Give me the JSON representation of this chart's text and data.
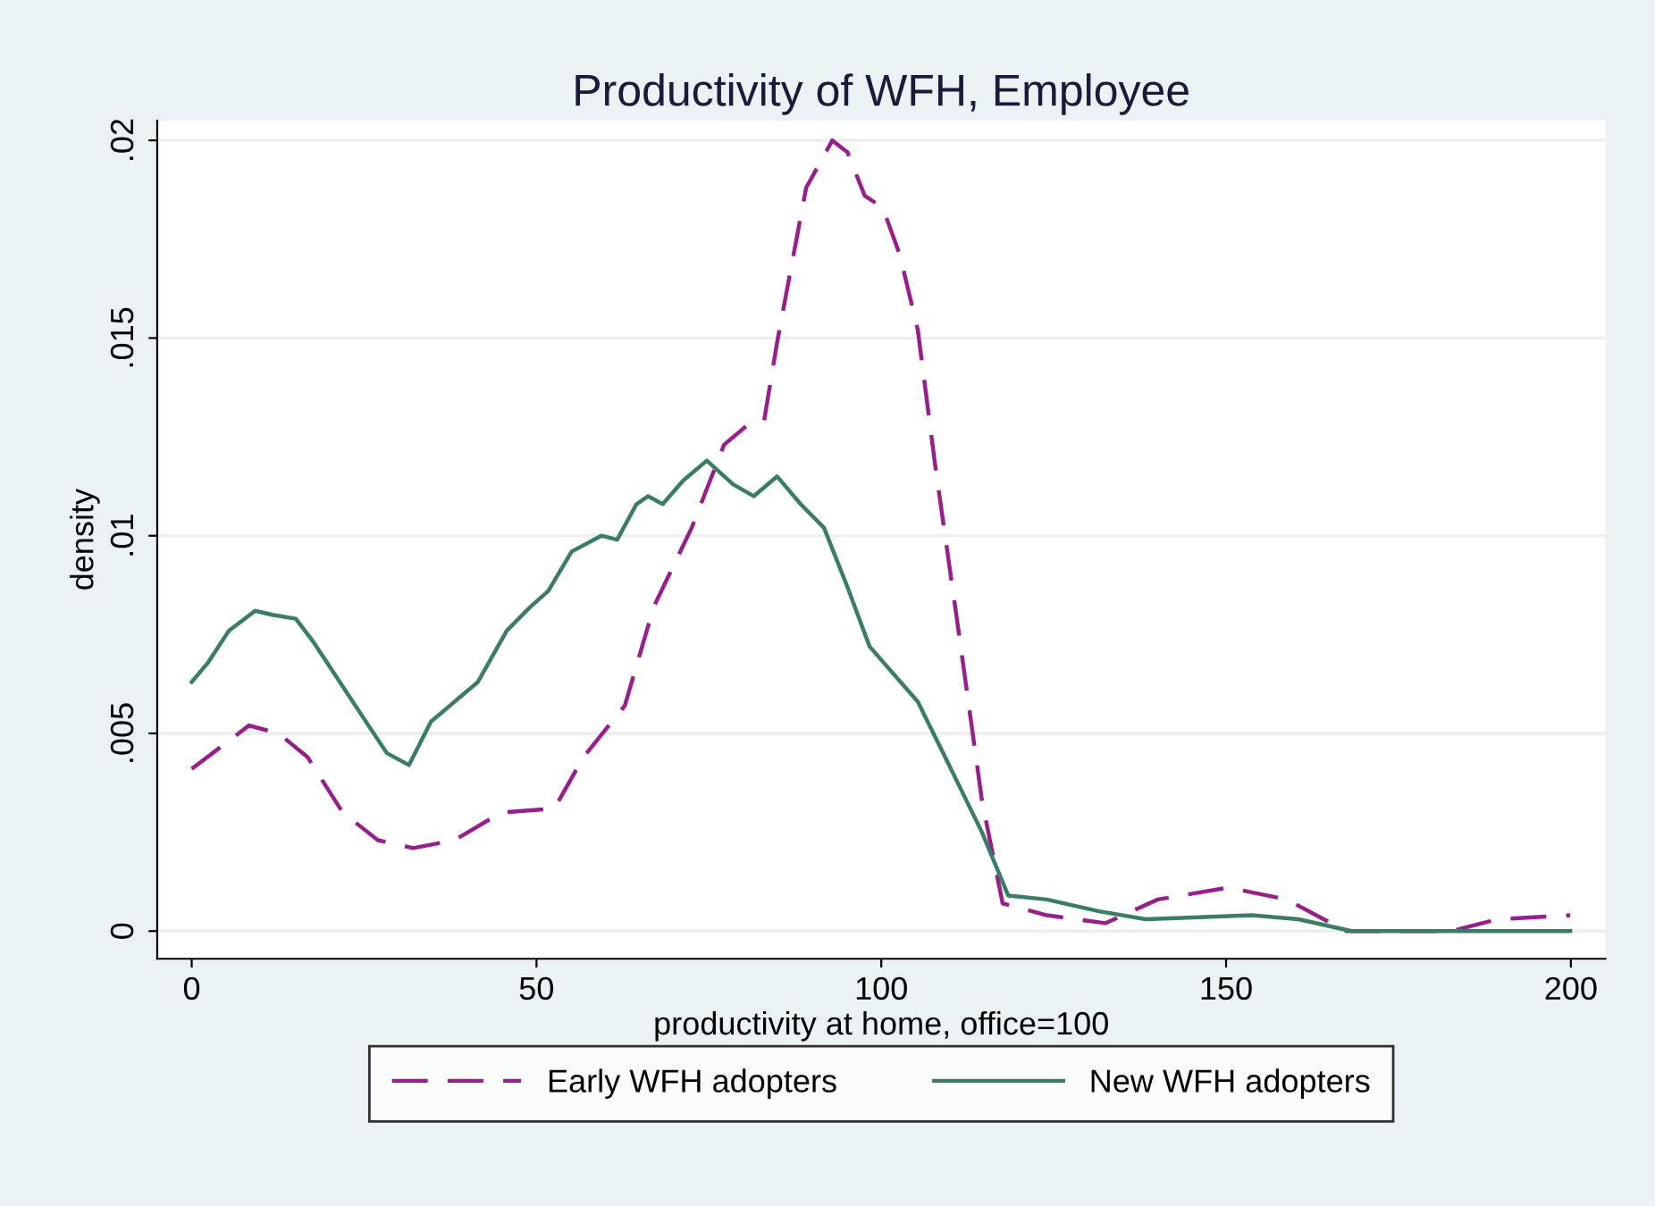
{
  "chart_data": {
    "type": "line",
    "title": "Productivity of WFH, Employee",
    "xlabel": "productivity at home, office=100",
    "ylabel": "density",
    "xlim": [
      -5,
      205
    ],
    "xticks": [
      0,
      50,
      100,
      150,
      200
    ],
    "ylim": [
      -0.0007,
      0.0205
    ],
    "yticks": [
      {
        "value": 0,
        "label": "0"
      },
      {
        "value": 0.005,
        "label": ".005"
      },
      {
        "value": 0.01,
        "label": ".01"
      },
      {
        "value": 0.015,
        "label": ".015"
      },
      {
        "value": 0.02,
        "label": ".02"
      }
    ],
    "grid": "y",
    "legend": "bottom",
    "series": [
      {
        "name": "Early WFH adopters",
        "color": "#981e8c",
        "line_style": "dashed",
        "x": [
          0,
          8.3,
          12.6,
          16.8,
          21.9,
          27,
          32.1,
          38.1,
          44.9,
          52.6,
          56.8,
          62.8,
          67,
          72.5,
          77.2,
          80.6,
          83,
          84.9,
          89.1,
          92.9,
          95.1,
          97.6,
          100.2,
          102.7,
          105.3,
          107.8,
          111.2,
          114.6,
          117.6,
          124,
          132.5,
          140.1,
          150.3,
          158.8,
          167.4,
          182.7,
          189.4,
          199.9
        ],
        "values": [
          0.0041,
          0.0052,
          0.005,
          0.0044,
          0.003,
          0.0023,
          0.0021,
          0.0023,
          0.003,
          0.0031,
          0.0044,
          0.0057,
          0.0082,
          0.0102,
          0.0123,
          0.0128,
          0.0129,
          0.0149,
          0.0188,
          0.02,
          0.0197,
          0.0186,
          0.0183,
          0.0171,
          0.0152,
          0.0118,
          0.0076,
          0.0033,
          0.0007,
          0.0004,
          0.0002,
          0.0008,
          0.0011,
          0.0008,
          0.0,
          0.0,
          0.0003,
          0.0004
        ]
      },
      {
        "name": "New WFH adopters",
        "color": "#3a7d62",
        "line_style": "solid",
        "x": [
          0,
          2.4,
          5.4,
          9.2,
          11.7,
          15.1,
          17.7,
          21.1,
          24.5,
          28.3,
          31.5,
          34.7,
          38.1,
          41.5,
          45.7,
          49.1,
          51.7,
          55.1,
          59.4,
          61.7,
          64.5,
          66.2,
          68.3,
          71.3,
          74.7,
          78.5,
          81.5,
          84.9,
          88.3,
          91.7,
          95.1,
          98.3,
          105.3,
          108.7,
          114.6,
          118.4,
          124,
          131.6,
          138.4,
          153.7,
          160.5,
          168.2,
          199.9
        ],
        "values": [
          0.0063,
          0.0068,
          0.0076,
          0.0081,
          0.008,
          0.0079,
          0.0073,
          0.0064,
          0.0055,
          0.0045,
          0.0042,
          0.0053,
          0.0058,
          0.0063,
          0.0076,
          0.0082,
          0.0086,
          0.0096,
          0.01,
          0.0099,
          0.0108,
          0.011,
          0.0108,
          0.0114,
          0.0119,
          0.0113,
          0.011,
          0.0115,
          0.0108,
          0.0102,
          0.0087,
          0.0072,
          0.0058,
          0.0046,
          0.0025,
          0.0009,
          0.0008,
          0.0005,
          0.0003,
          0.0004,
          0.0003,
          0.0,
          0.0
        ]
      }
    ]
  }
}
